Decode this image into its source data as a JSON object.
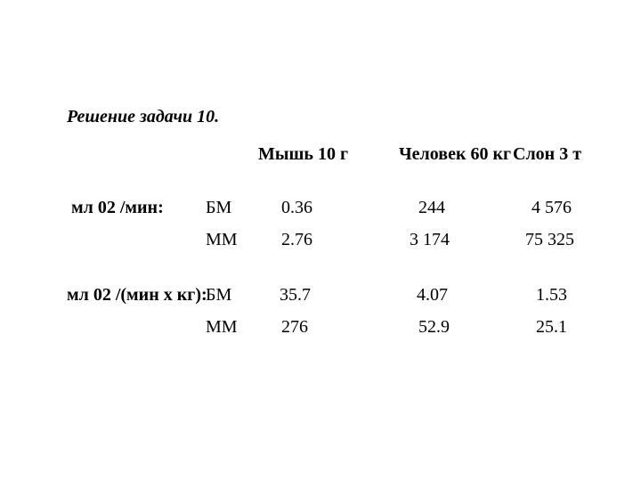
{
  "title": "Решение задачи 10.",
  "columns": [
    "Мышь 10 г",
    "Человек 60 кг",
    "Слон 3 т"
  ],
  "row_group_labels": [
    "мл 02 /мин:",
    "мл 02 /(мин х кг):"
  ],
  "sub_labels": [
    "БМ",
    "ММ",
    "БМ",
    "ММ"
  ],
  "cells": {
    "r1": [
      "0.36",
      "244",
      "4 576"
    ],
    "r2": [
      "2.76",
      "3 174",
      "75 325"
    ],
    "r3": [
      "35.7",
      "4.07",
      "1.53"
    ],
    "r4": [
      "276",
      "52.9",
      "25.1"
    ]
  },
  "style": {
    "background_color": "#ffffff",
    "text_color": "#000000",
    "font_family": "Times New Roman",
    "title_fontsize_pt": 15,
    "body_fontsize_pt": 15,
    "title_italic": true,
    "title_bold": true,
    "header_bold": true
  }
}
